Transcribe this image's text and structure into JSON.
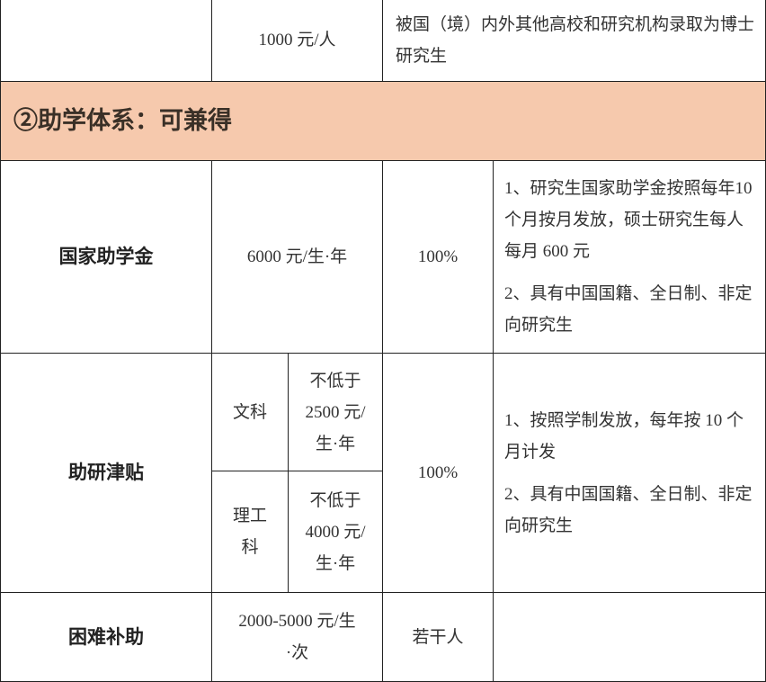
{
  "header_color": "#f6c9ad",
  "row_prev": {
    "amount": "1000 元/人",
    "condition": "被国（境）内外其他高校和研究机构录取为博士研究生"
  },
  "section_title": "②助学体系：可兼得",
  "rows": [
    {
      "name": "国家助学金",
      "amount": "6000 元/生·年",
      "ratio": "100%",
      "notes": [
        "1、研究生国家助学金按照每年10 个月按月发放，硕士研究生每人每月 600 元",
        "2、具有中国国籍、全日制、非定向研究生"
      ]
    },
    {
      "name": "助研津贴",
      "sub": [
        {
          "field": "文科",
          "amount": "不低于2500 元/生·年"
        },
        {
          "field": "理工科",
          "amount": "不低于4000 元/生·年"
        }
      ],
      "ratio": "100%",
      "notes": [
        "1、按照学制发放，每年按 10 个月计发",
        "2、具有中国国籍、全日制、非定向研究生"
      ]
    },
    {
      "name": "困难补助",
      "amount": "2000-5000 元/生·次",
      "ratio": "若干人"
    }
  ]
}
